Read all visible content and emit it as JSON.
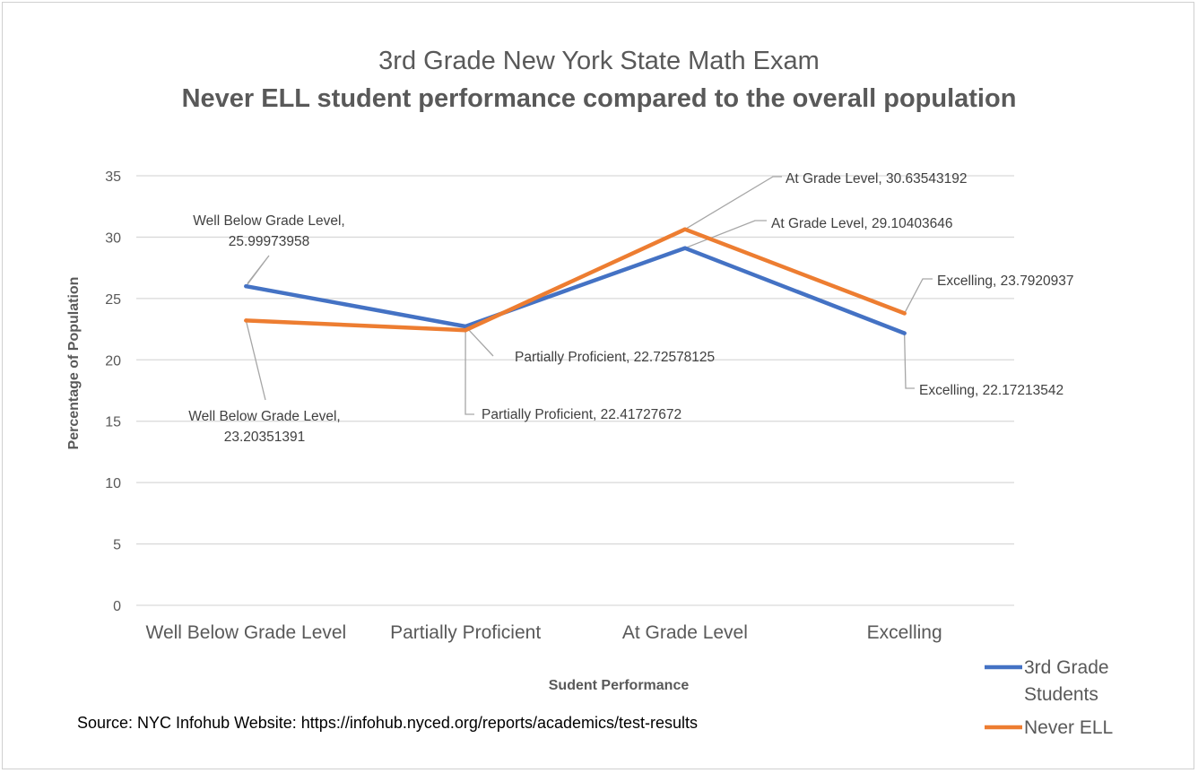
{
  "chart_data": {
    "type": "line",
    "title": "3rd Grade New York State Math Exam",
    "subtitle": "Never ELL student performance compared to the overall population",
    "xlabel": "Sudent Performance",
    "ylabel": "Percentage of Population",
    "categories": [
      "Well Below Grade Level",
      "Partially Proficient",
      "At Grade Level",
      "Excelling"
    ],
    "ylim": [
      0,
      35
    ],
    "yticks": [
      "0",
      "5",
      "10",
      "15",
      "20",
      "25",
      "30",
      "35"
    ],
    "grid": true,
    "legend_position": "right",
    "series": [
      {
        "name": "3rd Grade Students",
        "color": "#4472C4",
        "values": [
          25.99973958,
          22.72578125,
          29.10403646,
          22.17213542
        ]
      },
      {
        "name": "Never ELL",
        "color": "#ED7D31",
        "values": [
          23.20351391,
          22.41727672,
          30.63543192,
          23.7920937
        ]
      }
    ],
    "data_labels": [
      {
        "series": 0,
        "point": 0,
        "lines": [
          "Well Below Grade Level,",
          "25.99973958"
        ]
      },
      {
        "series": 1,
        "point": 0,
        "lines": [
          "Well Below Grade Level,",
          "23.20351391"
        ]
      },
      {
        "series": 0,
        "point": 1,
        "lines": [
          "Partially Proficient, 22.72578125"
        ]
      },
      {
        "series": 1,
        "point": 1,
        "lines": [
          "Partially Proficient, 22.41727672"
        ]
      },
      {
        "series": 1,
        "point": 2,
        "lines": [
          "At Grade Level, 30.63543192"
        ]
      },
      {
        "series": 0,
        "point": 2,
        "lines": [
          "At Grade Level, 29.10403646"
        ]
      },
      {
        "series": 1,
        "point": 3,
        "lines": [
          "Excelling, 23.7920937"
        ]
      },
      {
        "series": 0,
        "point": 3,
        "lines": [
          "Excelling, 22.17213542"
        ]
      }
    ]
  },
  "legend": {
    "items": [
      {
        "lines": [
          "3rd Grade",
          "Students"
        ],
        "color": "#4472C4"
      },
      {
        "lines": [
          "Never ELL"
        ],
        "color": "#ED7D31"
      }
    ]
  },
  "source_note": "Source: NYC Infohub Website: https://infohub.nyced.org/reports/academics/test-results"
}
